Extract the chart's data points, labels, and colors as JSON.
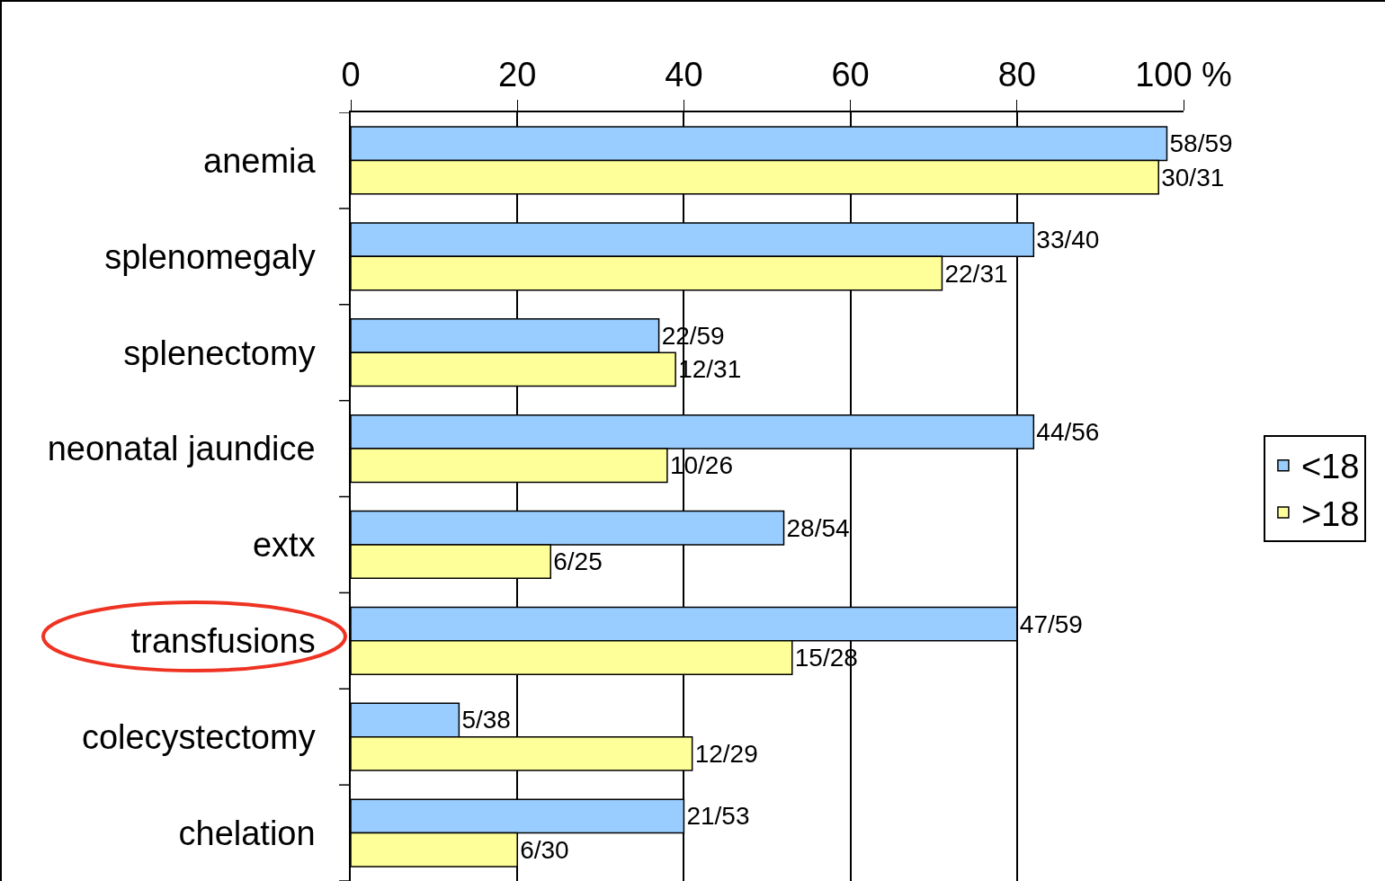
{
  "chart_data": {
    "type": "bar",
    "orientation": "horizontal",
    "categories": [
      "anemia",
      "splenomegaly",
      "splenectomy",
      "neonatal jaundice",
      "extx",
      "transfusions",
      "colecystectomy",
      "chelation"
    ],
    "series": [
      {
        "name": "<18",
        "color": "#99ccff",
        "values": [
          98,
          82,
          37,
          82,
          52,
          80,
          13,
          40
        ],
        "value_labels": [
          "58/59",
          "33/40",
          "22/59",
          "44/56",
          "28/54",
          "47/59",
          "5/38",
          "21/53"
        ]
      },
      {
        "name": ">18",
        "color": "#ffff99",
        "values": [
          97,
          71,
          39,
          38,
          24,
          53,
          41,
          20
        ],
        "value_labels": [
          "30/31",
          "22/31",
          "12/31",
          "10/26",
          "6/25",
          "15/28",
          "12/29",
          "6/30"
        ]
      }
    ],
    "xlim": [
      0,
      100
    ],
    "xticks": [
      0,
      20,
      40,
      60,
      80,
      {
        "value": 100,
        "label": "100 %"
      }
    ],
    "grid": "x",
    "legend": "right"
  }
}
